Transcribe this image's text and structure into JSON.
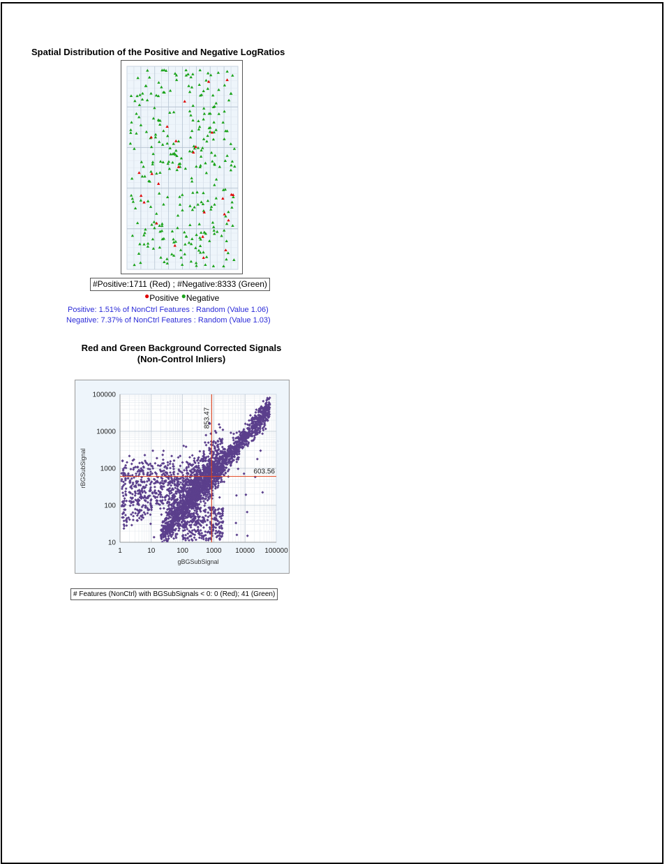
{
  "chart_data": [
    {
      "type": "scatter",
      "title": "Spatial Distribution of the Positive and Negative LogRatios",
      "marker": "triangle",
      "counts_label": "#Positive:1711 (Red) ; #Negative:8333 (Green)",
      "legend": [
        {
          "name": "Positive",
          "color": "#e00000"
        },
        {
          "name": "Negative",
          "color": "#1aa31a"
        }
      ],
      "legend_placement": "below",
      "grid": true,
      "stats": [
        "Positive: 1.51% of NonCtrl Features : Random (Value 1.06)",
        "Negative: 7.37% of NonCtrl Features : Random (Value 1.03)"
      ]
    },
    {
      "type": "scatter",
      "title": "Red and Green Background Corrected Signals (Non-Control Inliers)",
      "xlabel": "gBGSubSignal",
      "ylabel": "rBGSubSignal",
      "x_scale": "log",
      "y_scale": "log",
      "xlim": [
        1,
        100000
      ],
      "ylim": [
        10,
        100000
      ],
      "x_ticks": [
        "1",
        "10",
        "100",
        "1000",
        "10000",
        "100000"
      ],
      "y_ticks": [
        "10",
        "100",
        "1000",
        "10000",
        "100000"
      ],
      "grid": true,
      "point_color": "#5b3f8c",
      "ref_line_color": "#e0401a",
      "ref_lines": {
        "x": 853.47,
        "y": 603.56
      },
      "ref_labels": {
        "x": "853.47",
        "y": "603.56"
      },
      "footer": "# Features (NonCtrl) with BGSubSignals < 0: 0 (Red); 41 (Green)"
    }
  ]
}
